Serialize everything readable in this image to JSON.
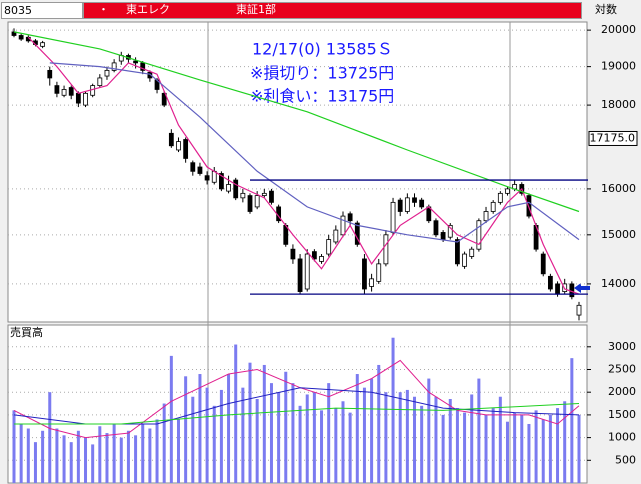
{
  "header": {
    "code": "8035",
    "dot": "・",
    "name": "東エレク",
    "market": "東証1部",
    "scale": "対数"
  },
  "chart_data": [
    {
      "type": "candlestick",
      "log_scale": true,
      "grid": true,
      "ylim": [
        13270,
        20230
      ],
      "yticks": [
        14000,
        15000,
        16000,
        18000,
        19000,
        20000
      ],
      "up_color": "#ffffff",
      "down_color": "#000000",
      "ohlc": [
        [
          19950,
          20050,
          19800,
          19850
        ],
        [
          19850,
          19900,
          19700,
          19750
        ],
        [
          19800,
          19850,
          19650,
          19700
        ],
        [
          19700,
          19750,
          19550,
          19600
        ],
        [
          19550,
          19700,
          19500,
          19650
        ],
        [
          18900,
          19000,
          18500,
          18700
        ],
        [
          18500,
          18600,
          18200,
          18300
        ],
        [
          18250,
          18500,
          18200,
          18400
        ],
        [
          18450,
          18500,
          18150,
          18250
        ],
        [
          18300,
          18350,
          17950,
          18050
        ],
        [
          18000,
          18350,
          17950,
          18300
        ],
        [
          18250,
          18550,
          18200,
          18500
        ],
        [
          18500,
          18800,
          18450,
          18700
        ],
        [
          18750,
          19000,
          18650,
          18900
        ],
        [
          18900,
          19200,
          18850,
          19100
        ],
        [
          19150,
          19400,
          19050,
          19300
        ],
        [
          19300,
          19350,
          19100,
          19200
        ],
        [
          19150,
          19250,
          18950,
          19100
        ],
        [
          19100,
          19150,
          18800,
          18900
        ],
        [
          18850,
          18900,
          18600,
          18700
        ],
        [
          18650,
          18700,
          18300,
          18400
        ],
        [
          18300,
          18350,
          17950,
          18000
        ],
        [
          17300,
          17400,
          16950,
          17000
        ],
        [
          16900,
          17200,
          16850,
          17100
        ],
        [
          17150,
          17200,
          16600,
          16700
        ],
        [
          16600,
          16650,
          16300,
          16400
        ],
        [
          16500,
          16600,
          16300,
          16350
        ],
        [
          16300,
          16400,
          16100,
          16200
        ],
        [
          16150,
          16500,
          16100,
          16400
        ],
        [
          16350,
          16400,
          15950,
          16000
        ],
        [
          15950,
          16300,
          15900,
          16100
        ],
        [
          16200,
          16250,
          15750,
          15800
        ],
        [
          15800,
          16000,
          15700,
          15900
        ],
        [
          15850,
          15900,
          15450,
          15500
        ],
        [
          15600,
          15950,
          15550,
          15850
        ],
        [
          15850,
          16000,
          15800,
          15900
        ],
        [
          15950,
          16000,
          15650,
          15700
        ],
        [
          15600,
          15650,
          15250,
          15300
        ],
        [
          15200,
          15250,
          14750,
          14800
        ],
        [
          14700,
          14800,
          14400,
          14500
        ],
        [
          14500,
          14600,
          13800,
          13850
        ],
        [
          13900,
          14700,
          13850,
          14600
        ],
        [
          14650,
          14700,
          14450,
          14500
        ],
        [
          14450,
          14600,
          14400,
          14550
        ],
        [
          14600,
          15000,
          14550,
          14900
        ],
        [
          14850,
          15200,
          14800,
          15100
        ],
        [
          15000,
          15500,
          14950,
          15400
        ],
        [
          15450,
          15500,
          15200,
          15300
        ],
        [
          15250,
          15300,
          14750,
          14800
        ],
        [
          14500,
          14600,
          13800,
          13900
        ],
        [
          13950,
          14200,
          13850,
          14100
        ],
        [
          14050,
          14500,
          14000,
          14400
        ],
        [
          14400,
          15100,
          14350,
          15000
        ],
        [
          15050,
          15800,
          15000,
          15700
        ],
        [
          15750,
          15800,
          15400,
          15500
        ],
        [
          15500,
          15900,
          15450,
          15800
        ],
        [
          15800,
          15900,
          15600,
          15700
        ],
        [
          15750,
          15800,
          15550,
          15600
        ],
        [
          15600,
          15650,
          15250,
          15300
        ],
        [
          15300,
          15350,
          14950,
          15000
        ],
        [
          15050,
          15100,
          14850,
          14900
        ],
        [
          14950,
          15250,
          14900,
          15200
        ],
        [
          14900,
          14950,
          14350,
          14400
        ],
        [
          14350,
          14650,
          14300,
          14600
        ],
        [
          14550,
          14750,
          14500,
          14700
        ],
        [
          14700,
          15350,
          14650,
          15300
        ],
        [
          15300,
          15600,
          15250,
          15500
        ],
        [
          15500,
          15750,
          15450,
          15700
        ],
        [
          15700,
          15950,
          15650,
          15900
        ],
        [
          15900,
          16050,
          15850,
          16000
        ],
        [
          16000,
          16200,
          15950,
          16100
        ],
        [
          16100,
          16150,
          15850,
          15900
        ],
        [
          15850,
          15900,
          15350,
          15400
        ],
        [
          15200,
          15250,
          14650,
          14700
        ],
        [
          14600,
          14650,
          14150,
          14200
        ],
        [
          14150,
          14200,
          13850,
          13900
        ],
        [
          14000,
          14050,
          13750,
          13800
        ],
        [
          13850,
          14100,
          13800,
          14000
        ],
        [
          14000,
          14050,
          13700,
          13750
        ],
        [
          13400,
          13650,
          13300,
          13585
        ]
      ],
      "moving_averages": [
        {
          "color": "#e0208f",
          "x": [
            2,
            6,
            9,
            13,
            16,
            20,
            23,
            27,
            31,
            35,
            39,
            43,
            47,
            50,
            54,
            58,
            62,
            65,
            69,
            71,
            74,
            77,
            79
          ],
          "values": [
            19800,
            19000,
            18300,
            18500,
            19100,
            18800,
            17500,
            16500,
            16100,
            15800,
            15000,
            14300,
            15200,
            14400,
            15200,
            15600,
            15000,
            14800,
            15700,
            16000,
            14800,
            13900,
            13800
          ]
        },
        {
          "color": "#6060c0",
          "x": [
            5,
            12,
            19,
            26,
            34,
            41,
            48,
            55,
            62,
            69,
            72,
            79
          ],
          "values": [
            19100,
            19000,
            18800,
            17700,
            16400,
            15600,
            15200,
            15000,
            14850,
            15600,
            15700,
            14900
          ]
        },
        {
          "color": "#20d020",
          "x": [
            0,
            12,
            26,
            41,
            55,
            69,
            79
          ],
          "values": [
            19950,
            19480,
            18650,
            17830,
            16900,
            16050,
            15500
          ]
        }
      ],
      "hlines": {
        "color": "#000080",
        "values": [
          16200,
          13800
        ]
      },
      "price_marker": {
        "value": 17175,
        "label": "17175.0"
      },
      "annotations": [
        "12/17(0) 13585Ｓ",
        "※損切り：13725円",
        "※利食い：13175円"
      ],
      "annotation_color": "#1a1aff"
    },
    {
      "type": "bar",
      "title": "売買高",
      "color": "#7b7bf0",
      "grid": true,
      "ylim": [
        0,
        3480
      ],
      "yticks": [
        500,
        1000,
        1500,
        2000,
        2500,
        3000
      ],
      "values": [
        1600,
        1300,
        1200,
        900,
        1150,
        2000,
        1200,
        1050,
        900,
        1150,
        1000,
        850,
        1250,
        1100,
        1300,
        1000,
        1150,
        1050,
        1300,
        1200,
        1400,
        1750,
        2800,
        1400,
        2350,
        1900,
        2400,
        2100,
        1700,
        2050,
        2400,
        3050,
        2100,
        2650,
        1850,
        2600,
        2200,
        2000,
        2450,
        2200,
        1700,
        1950,
        2000,
        1600,
        2200,
        1650,
        1800,
        1550,
        2400,
        2100,
        2300,
        2600,
        2000,
        3200,
        2000,
        2050,
        1900,
        1700,
        2300,
        1900,
        1500,
        1850,
        1650,
        1550,
        1950,
        2300,
        1500,
        1650,
        1900,
        1350,
        1550,
        1500,
        1300,
        1600,
        1400,
        1500,
        1650,
        1800,
        2750,
        1500
      ],
      "moving_averages": [
        {
          "color": "#e0208f",
          "x": [
            0,
            5,
            10,
            16,
            22,
            30,
            34,
            40,
            44,
            50,
            54,
            58,
            62,
            66,
            72,
            76,
            79
          ],
          "values": [
            1600,
            1200,
            1000,
            1100,
            1800,
            2400,
            2500,
            2100,
            1900,
            2300,
            2700,
            2000,
            1600,
            1500,
            1500,
            1300,
            1700
          ]
        },
        {
          "color": "#2020c0",
          "x": [
            0,
            10,
            20,
            30,
            40,
            50,
            60,
            70,
            79
          ],
          "values": [
            1500,
            1300,
            1300,
            1750,
            2100,
            2000,
            1650,
            1550,
            1500
          ]
        },
        {
          "color": "#20d020",
          "x": [
            0,
            15,
            30,
            45,
            60,
            79
          ],
          "values": [
            1300,
            1300,
            1500,
            1650,
            1600,
            1750
          ]
        }
      ]
    }
  ]
}
